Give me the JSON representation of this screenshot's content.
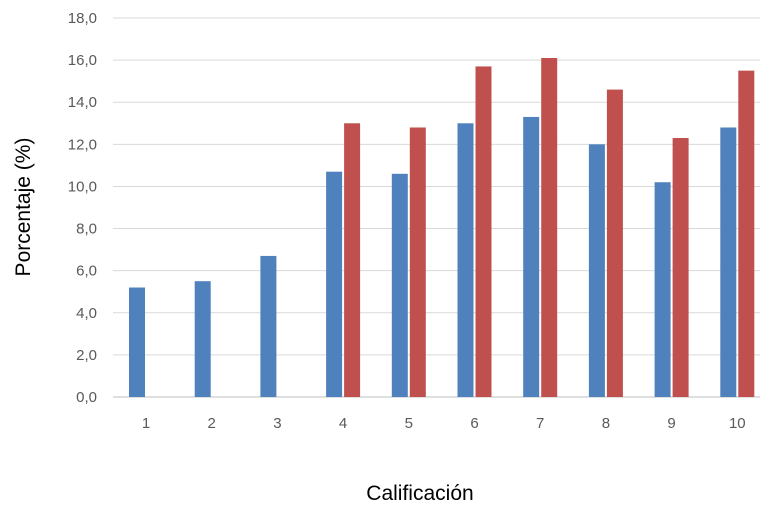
{
  "chart_data": {
    "type": "bar",
    "title": "",
    "xlabel": "Calificación",
    "ylabel": "Porcentaje (%)",
    "ylim": [
      0,
      18
    ],
    "yticks": [
      "0,0",
      "2,0",
      "4,0",
      "6,0",
      "8,0",
      "10,0",
      "12,0",
      "14,0",
      "16,0",
      "18,0"
    ],
    "categories": [
      "1",
      "2",
      "3",
      "4",
      "5",
      "6",
      "7",
      "8",
      "9",
      "10"
    ],
    "grid": true,
    "legend": "none",
    "series": [
      {
        "color": "#4F81BD",
        "values": [
          5.2,
          5.5,
          6.7,
          10.7,
          10.6,
          13.0,
          13.3,
          12.0,
          10.2,
          12.8
        ]
      },
      {
        "color": "#C0504D",
        "values": [
          null,
          null,
          null,
          13.0,
          12.8,
          15.7,
          16.1,
          14.6,
          12.3,
          15.5
        ]
      }
    ]
  }
}
